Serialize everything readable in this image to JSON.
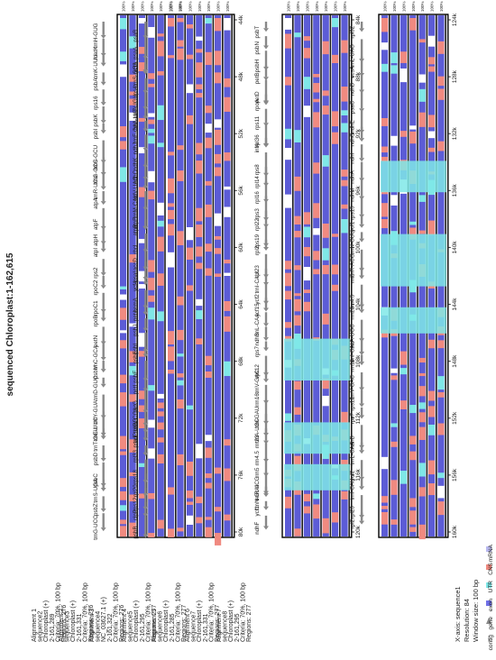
{
  "title": "sequenced Chloroplast:1-162,615",
  "colors": {
    "exon": "#6f6fe6",
    "utr": "#f08a80",
    "cns": "#7fe7e7",
    "mrna": "#b9b9f0",
    "identity_high": "#5c5cd6",
    "identity_low": "#f4a096",
    "gene_arrow": "#888888",
    "frame": "#000000"
  },
  "legend": {
    "xaxis": "X-axis: sequence1",
    "resolution": "Resolution: 84",
    "window": "Window size: 100 bp",
    "items": [
      {
        "label": "contig",
        "color": "#ffffff",
        "shape": "line"
      },
      {
        "label": "gene",
        "color": "#888888",
        "shape": "arrow"
      },
      {
        "label": "exon",
        "color": "#6f6fe6",
        "shape": "box"
      },
      {
        "label": "UTR",
        "color": "#7fe7e7",
        "shape": "box"
      },
      {
        "label": "CNS",
        "color": "#f08a80",
        "shape": "box"
      },
      {
        "label": "mRNA",
        "color": "#b9b9f0",
        "shape": "box"
      }
    ]
  },
  "alignments": [
    {
      "name": "Alignment 1",
      "sequence": "sequence2",
      "organism": "Chloroplast (+)",
      "range": "2-161,289",
      "criteria": "Criteria: 70%, 100 bp",
      "regions": "Regions: 276"
    },
    {
      "name": "Alignment 2",
      "sequence": "sequence3",
      "organism": "Chloroplast (+)",
      "range": "2-161,331",
      "criteria": "Criteria: 70%, 100 bp",
      "regions": "Regions: 276"
    },
    {
      "name": "Alignment 3",
      "sequence": "sequence4",
      "organism": "NC_03627.1 (+)",
      "range": "2-161,322",
      "criteria": "Criteria: 70%, 100 bp",
      "regions": "Regions: 276"
    },
    {
      "name": "Alignment 4",
      "sequence": "sequence5",
      "organism": "Chloroplast (+)",
      "range": "2-161,295",
      "criteria": "Criteria: 70%, 100 bp",
      "regions": "Regions: 277"
    },
    {
      "name": "Alignment 5",
      "sequence": "sequence6",
      "organism": "Chloroplast (+)",
      "range": "2-161,285",
      "criteria": "Criteria: 70%, 100 bp",
      "regions": "Regions: 277"
    },
    {
      "name": "Alignment 6",
      "sequence": "sequence7",
      "organism": "Chloroplast (+)",
      "range": "2-161,331",
      "criteria": "Criteria: 70%, 100 bp",
      "regions": "Regions: 277"
    },
    {
      "name": "Alignment 7",
      "sequence": "sequence8",
      "organism": "Chloroplast (+)",
      "range": "2-161,295",
      "criteria": "Criteria: 70%, 100 bp",
      "regions": "Regions: 277"
    }
  ],
  "panels": [
    {
      "ticks": [
        "0k",
        "4k",
        "8k",
        "12k",
        "16k",
        "20k",
        "24k",
        "28k",
        "32k",
        "36k",
        "40k"
      ],
      "genes": [
        "trnH-GUG",
        "matK",
        "trnK-UUU",
        "psbA",
        "rps16",
        "psbK",
        "psbI",
        "trnS-GCU",
        "trnG-GCC",
        "trnR-UCU",
        "atpA",
        "atpF",
        "atpH",
        "atpI",
        "rps2",
        "rpoC2",
        "rpoC1",
        "rpoB",
        "petN",
        "trnC-GCA",
        "psbM",
        "trnD-GUC",
        "trnY-GUA",
        "trnE-UUC",
        "trnT-GGU",
        "psbD",
        "psbC",
        "trnS-UGA",
        "psbZ",
        "trnG-UCC"
      ]
    },
    {
      "ticks": [
        "44k",
        "48k",
        "52k",
        "56k",
        "60k",
        "64k",
        "68k",
        "72k",
        "76k",
        "80k"
      ],
      "genes": [
        "psaB",
        "psaA",
        "ycf3",
        "trnS-GGA",
        "rps4",
        "trnT-UGU",
        "trnL-UAA",
        "trnF-GAA",
        "ndhJ",
        "ndhK",
        "ndhC",
        "trnV-UAC",
        "trnM-CAU",
        "atpE",
        "atpB",
        "rbcL",
        "accD",
        "psaI",
        "ycf4",
        "cemA",
        "petA",
        "psbJ",
        "psbL",
        "psbF",
        "psbE",
        "petL",
        "petG",
        "trnW-CCA",
        "trnP-UGG",
        "psaJ",
        "rpl33",
        "rps18",
        "rpl20",
        "rps12",
        "clpP",
        "psbB"
      ]
    },
    {
      "ticks": [
        "84k",
        "88k",
        "92k",
        "96k",
        "100k",
        "104k",
        "108k",
        "112k",
        "116k",
        "120k"
      ],
      "genes": [
        "psbT",
        "psbN",
        "psbH",
        "petB",
        "petD",
        "rpoA",
        "rps11",
        "rpl36",
        "infA",
        "rps8",
        "rpl14",
        "rpl16",
        "rps3",
        "rpl22",
        "rps19",
        "rpl2",
        "rpl23",
        "trnI-CAU",
        "ycf2",
        "ycf15",
        "trnL-CAA",
        "ndhB",
        "rps7",
        "rps12",
        "trnV-GAC",
        "rrn16",
        "trnI-GAU",
        "trnA-UGC",
        "rrn23",
        "rrn4.5",
        "rrn5",
        "trnR-ACG",
        "trnN-GUU",
        "ycf1",
        "ndhF"
      ]
    },
    {
      "ticks": [
        "124k",
        "128k",
        "132k",
        "136k",
        "140k",
        "144k",
        "148k",
        "152k",
        "156k",
        "160k"
      ],
      "genes": [
        "rpl32",
        "trnL-UAG",
        "ccsA",
        "ndhD",
        "psaC",
        "ndhE",
        "ndhG",
        "ndhI",
        "ndhA",
        "ndhH",
        "rps15",
        "ycf1",
        "trnN-GUU",
        "trnR-ACG",
        "rrn5",
        "rrn4.5",
        "rrn23",
        "trnA-UGC",
        "trnI-GAU",
        "rrn16",
        "trnV-GAC",
        "rps12",
        "rps7",
        "ndhB",
        "trnL-CAA",
        "ycf2",
        "trnI-CAU",
        "rpl23",
        "rpl2"
      ]
    }
  ]
}
